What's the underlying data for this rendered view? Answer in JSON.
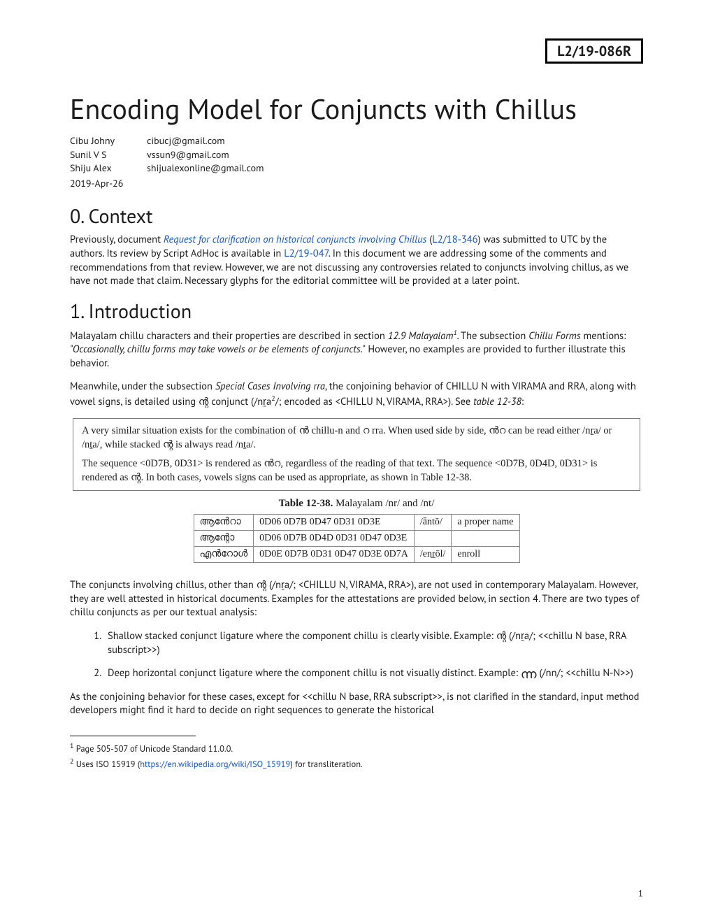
{
  "doc_id": "L2/19-086R",
  "title": "Encoding Model for Conjuncts with Chillus",
  "authors": [
    {
      "name": "Cibu Johny",
      "email": "cibucj@gmail.com"
    },
    {
      "name": "Sunil V S",
      "email": "vssun9@gmail.com"
    },
    {
      "name": "Shiju Alex",
      "email": "shijualexonline@gmail.com"
    }
  ],
  "date": "2019-Apr-26",
  "h_context": "0. Context",
  "context_pre": "Previously, document ",
  "context_link1_text": "Request for clarification on historical conjuncts involving Chillus",
  "context_mid1": " (",
  "context_link2_text": "L2/18-346",
  "context_mid2": ")  was submitted to UTC by the authors. Its review by Script AdHoc is available in ",
  "context_link3_text": "L2/19-047",
  "context_post": ". In this document we are addressing some of the comments and recommendations from that review. However, we are not discussing any controversies related to conjuncts involving chillus, as we have not made that claim. Necessary glyphs for the editorial committee will be provided at a later point.",
  "h_intro": " 1. Introduction",
  "intro_p1_a": "Malayalam chillu characters and their properties are described in section ",
  "intro_p1_b": "12.9 Malayalam",
  "intro_p1_sup": "1",
  "intro_p1_c": ". The subsection ",
  "intro_p1_d": "Chillu Forms",
  "intro_p1_e": " mentions: ",
  "intro_p1_quote": "\"Occasionally, chillu forms may take vowels or be elements of conjuncts.\"",
  "intro_p1_f": " However, no examples are provided to further illustrate this behavior.",
  "intro_p2_a": "Meanwhile, under the subsection ",
  "intro_p2_b": "Special Cases Involving rra",
  "intro_p2_c": ", the conjoining behavior of CHILLU N with VIRAMA and RRA, along with vowel signs, is detailed using ന്റ conjunct (/nṟa",
  "intro_p2_sup": "2",
  "intro_p2_d": "/; encoded as <CHILLU N, VIRAMA, RRA>). See ",
  "intro_p2_e": "table 12-38",
  "intro_p2_f": ":",
  "quote_p1": "A very similar situation exists for the combination of ൻ chillu-n and റ rra. When used side by side, ൻറ can be read either /nṟa/ or /nṯa/, while stacked ന്റ is always read /nṯa/.",
  "quote_p2": "The sequence <0D7B, 0D31> is rendered as ൻറ, regardless of the reading of that text. The sequence <0D7B, 0D4D, 0D31> is rendered as ന്റ. In both cases, vowels signs can be used as appropriate, as shown in Table 12-38.",
  "table_caption_bold": "Table 12-38.",
  "table_caption_rest": "  Malayalam /nr/ and /nt/",
  "table_rows": [
    {
      "c1": "ആൻേറാ",
      "c2": "0D06 0D7B 0D47 0D31 0D3E",
      "c3": "/ǟntō/",
      "c4": "a proper name"
    },
    {
      "c1": "ആന്റോ",
      "c2": "0D06 0D7B 0D4D 0D31 0D47 0D3E",
      "c3": "",
      "c4": ""
    },
    {
      "c1": "എൻറോൾ",
      "c2": "0D0E 0D7B 0D31 0D47 0D3E 0D7A",
      "c3": "/enr̲ōl/",
      "c4": "enroll"
    }
  ],
  "below_p1": "The conjuncts involving chillus, other than ന്റ (/nṟa/; <CHILLU N, VIRAMA, RRA>), are not used in contemporary Malayalam. However, they are well attested in historical documents. Examples for the attestations are provided below, in section 4. There are two types of chillu conjuncts as per our textual analysis:",
  "enum1": "Shallow stacked conjunct ligature where the component chillu is clearly visible. Example: ന്റ (/nṟa/; <<chillu N base, RRA subscript>>)",
  "enum2_a": "Deep horizontal conjunct ligature where the component chillu is not visually distinct. Example: ",
  "enum2_glyph": "ന്ന",
  "enum2_b": " (/nn/; <<chillu N-N>>)",
  "below_p2": "As the conjoining behavior for these cases, except for <<chillu N base, RRA subscript>>, is not clarified in the standard, input method developers might find it hard to decide on right sequences to generate the historical",
  "fn1_a": " Page 505-507 of Unicode Standard 11.0.0.",
  "fn2_a": " Uses ISO 15919 (",
  "fn2_link": "https://en.wikipedia.org/wiki/ISO_15919",
  "fn2_b": ") for transliteration.",
  "page_number": "1",
  "colors": {
    "link": "#1155cc",
    "border": "#7a7a7a",
    "table_border": "#888888",
    "text": "#1a1a1a",
    "background": "#ffffff"
  }
}
